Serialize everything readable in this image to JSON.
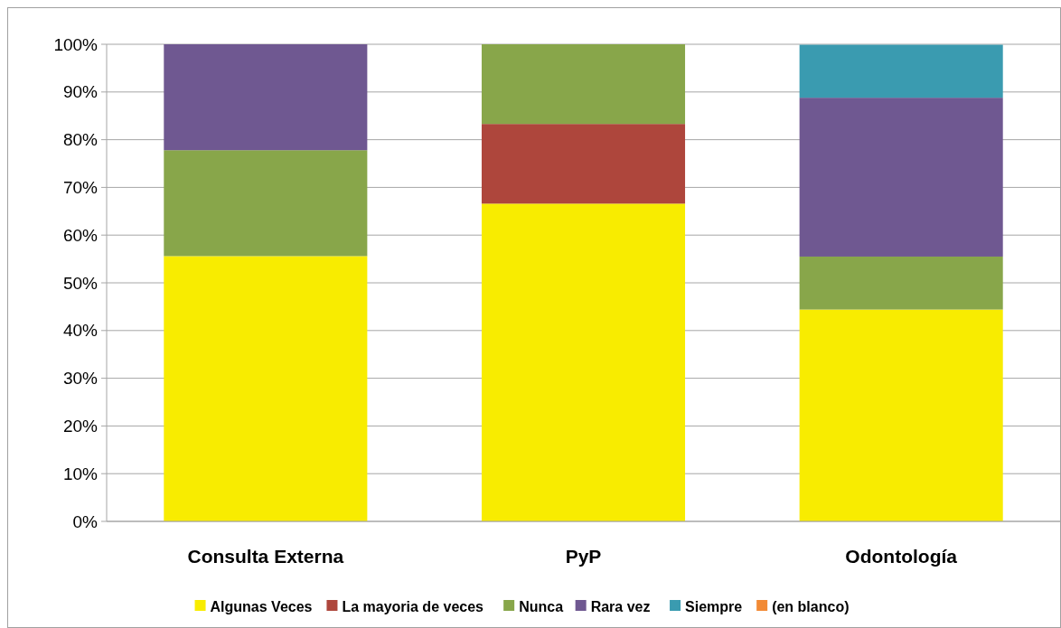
{
  "chart_data": {
    "type": "bar",
    "stacked": true,
    "categories": [
      "Consulta Externa",
      "PyP",
      "Odontología"
    ],
    "series": [
      {
        "name": "Algunas Veces",
        "color": "#f8ec00",
        "values": [
          55.6,
          66.6,
          44.4
        ]
      },
      {
        "name": "La mayoria de veces",
        "color": "#ae463c",
        "values": [
          null,
          16.7,
          null
        ]
      },
      {
        "name": "Nunca",
        "color": "#88a64a",
        "values": [
          22.2,
          16.7,
          11.1
        ]
      },
      {
        "name": "Rara vez",
        "color": "#6f5891",
        "values": [
          22.2,
          null,
          33.3
        ]
      },
      {
        "name": "Siempre",
        "color": "#3a9bb0",
        "values": [
          null,
          null,
          11.1
        ]
      },
      {
        "name": "(en blanco)",
        "color": "#f28a35",
        "values": [
          null,
          null,
          null
        ]
      }
    ],
    "ylim": [
      0,
      100
    ],
    "yticks": [
      {
        "value": 0,
        "label": "0%"
      },
      {
        "value": 10,
        "label": "10%"
      },
      {
        "value": 20,
        "label": "20%"
      },
      {
        "value": 30,
        "label": "30%"
      },
      {
        "value": 40,
        "label": "40%"
      },
      {
        "value": 50,
        "label": "50%"
      },
      {
        "value": 60,
        "label": "60%"
      },
      {
        "value": 70,
        "label": "70%"
      },
      {
        "value": 80,
        "label": "80%"
      },
      {
        "value": 90,
        "label": "90%"
      },
      {
        "value": 100,
        "label": "100%"
      }
    ],
    "grid": "y",
    "legend": "bottom"
  }
}
